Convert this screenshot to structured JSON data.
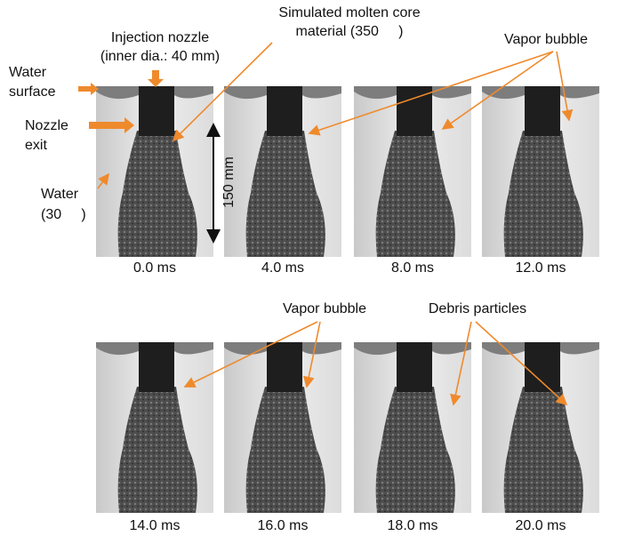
{
  "labels": {
    "injection_nozzle": [
      "Injection nozzle",
      "(inner dia.: 40 mm)"
    ],
    "molten_core": [
      "Simulated molten core",
      "material (350     )"
    ],
    "water_surface": [
      "Water",
      "surface"
    ],
    "nozzle_exit": [
      "Nozzle",
      "exit"
    ],
    "water": [
      "Water",
      "(30     )"
    ],
    "scale": "150 mm",
    "vapor_bubble_top": "Vapor bubble",
    "vapor_bubble_bottom": "Vapor bubble",
    "debris_particles": "Debris particles"
  },
  "frames": [
    "0.0 ms",
    "4.0 ms",
    "8.0 ms",
    "12.0 ms",
    "14.0 ms",
    "16.0 ms",
    "18.0 ms",
    "20.0 ms"
  ]
}
